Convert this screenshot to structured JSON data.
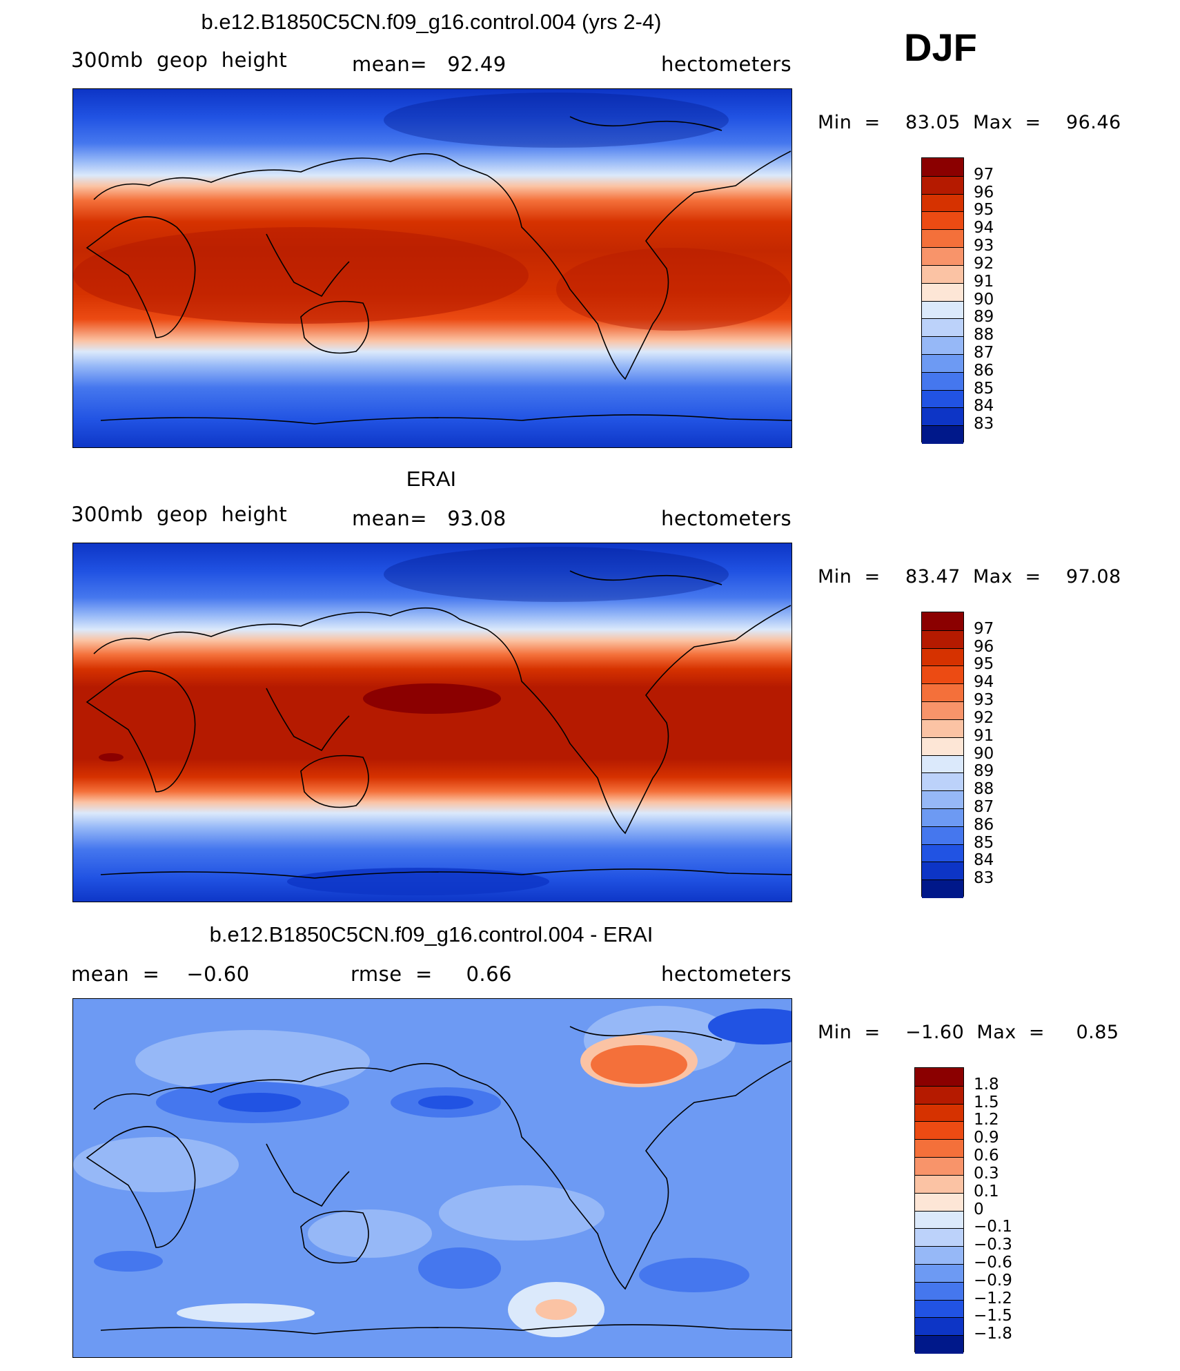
{
  "season": "DJF",
  "panels": [
    {
      "title": "b.e12.B1850C5CN.f09_g16.control.004 (yrs 2-4)",
      "left_text": "300mb  geop  height",
      "center_text": "mean=   92.49",
      "right_text": "hectometers",
      "min_label": "Min  =    83.05  Max  =    96.46",
      "colorbar": {
        "labels": [
          "97",
          "96",
          "95",
          "94",
          "93",
          "92",
          "91",
          "90",
          "89",
          "88",
          "87",
          "86",
          "85",
          "84",
          "83"
        ],
        "colors": [
          "#8b0000",
          "#b51a00",
          "#d63200",
          "#ec4b13",
          "#f4703a",
          "#f8946a",
          "#fbc3a4",
          "#fde6d6",
          "#dbe9fb",
          "#bcd2fa",
          "#96b8f7",
          "#6d9af3",
          "#4577ee",
          "#2153e3",
          "#0d35c6",
          "#00188a"
        ]
      }
    },
    {
      "title": "ERAI",
      "left_text": "300mb  geop  height",
      "center_text": "mean=   93.08",
      "right_text": "hectometers",
      "min_label": "Min  =    83.47  Max  =    97.08",
      "colorbar": {
        "labels": [
          "97",
          "96",
          "95",
          "94",
          "93",
          "92",
          "91",
          "90",
          "89",
          "88",
          "87",
          "86",
          "85",
          "84",
          "83"
        ],
        "colors": [
          "#8b0000",
          "#b51a00",
          "#d63200",
          "#ec4b13",
          "#f4703a",
          "#f8946a",
          "#fbc3a4",
          "#fde6d6",
          "#dbe9fb",
          "#bcd2fa",
          "#96b8f7",
          "#6d9af3",
          "#4577ee",
          "#2153e3",
          "#0d35c6",
          "#00188a"
        ]
      }
    },
    {
      "title": "b.e12.B1850C5CN.f09_g16.control.004 - ERAI",
      "left_text": "mean  =    −0.60",
      "center_text": "rmse  =     0.66",
      "right_text": "hectometers",
      "min_label": "Min  =    −1.60  Max  =     0.85",
      "colorbar": {
        "labels": [
          "1.8",
          "1.5",
          "1.2",
          "0.9",
          "0.6",
          "0.3",
          "0.1",
          "0",
          "−0.1",
          "−0.3",
          "−0.6",
          "−0.9",
          "−1.2",
          "−1.5",
          "−1.8"
        ],
        "colors": [
          "#8b0000",
          "#b51a00",
          "#d63200",
          "#ec4b13",
          "#f4703a",
          "#f8946a",
          "#fbc3a4",
          "#fde6d6",
          "#dbe9fb",
          "#bcd2fa",
          "#96b8f7",
          "#6d9af3",
          "#4577ee",
          "#2153e3",
          "#0d35c6",
          "#00188a"
        ]
      }
    }
  ]
}
